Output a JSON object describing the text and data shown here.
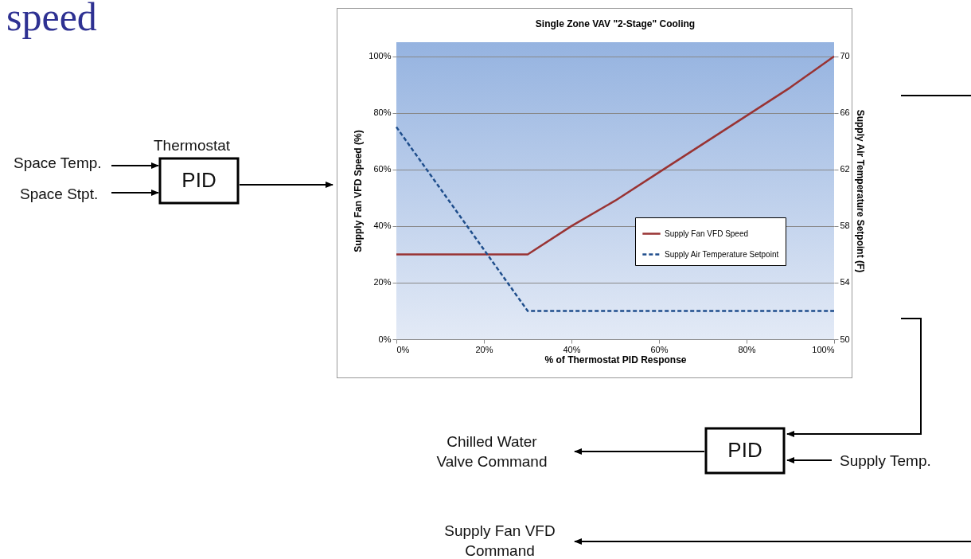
{
  "chart_data": {
    "type": "line",
    "title": "Single Zone VAV \"2-Stage\" Cooling",
    "xlabel": "% of Thermostat PID Response",
    "ylabel": "Supply Fan VFD Speed (%)",
    "y2label": "Supply Air Temperature Setpoint (F)",
    "xlim": [
      0,
      100
    ],
    "xticks": [
      {
        "value": 0,
        "label": "0%"
      },
      {
        "value": 20,
        "label": "20%"
      },
      {
        "value": 40,
        "label": "40%"
      },
      {
        "value": 60,
        "label": "60%"
      },
      {
        "value": 80,
        "label": "80%"
      },
      {
        "value": 100,
        "label": "100%"
      }
    ],
    "ylim": [
      0,
      105
    ],
    "yticks": [
      {
        "value": 0,
        "label": "0%"
      },
      {
        "value": 20,
        "label": "20%"
      },
      {
        "value": 40,
        "label": "40%"
      },
      {
        "value": 60,
        "label": "60%"
      },
      {
        "value": 80,
        "label": "80%"
      },
      {
        "value": 100,
        "label": "100%"
      }
    ],
    "y2lim": [
      50,
      71
    ],
    "y2ticks": [
      50,
      54,
      58,
      62,
      66,
      70
    ],
    "grid": "y",
    "legend": "right",
    "marker": "none",
    "series": [
      {
        "name": "Supply Fan VFD Speed",
        "color": "#993333",
        "line_style": "solid",
        "x": [
          0,
          30,
          40,
          50,
          60,
          70,
          80,
          90,
          100
        ],
        "values": [
          30,
          30,
          40,
          49,
          59,
          69,
          79,
          89,
          100
        ]
      },
      {
        "name": "Supply Air Temperature Setpoint",
        "color": "#1f4e8c",
        "line_style": "dashed",
        "axis": "y2",
        "x": [
          0,
          30,
          100
        ],
        "values": [
          65,
          52,
          52
        ]
      }
    ],
    "annotations": [
      "speed",
      "Thermostat",
      "Space Temp.",
      "Space Stpt.",
      "PID",
      "PID",
      "Chilled Water Valve Command",
      "Supply Temp.",
      "Supply Fan VFD Command"
    ]
  }
}
